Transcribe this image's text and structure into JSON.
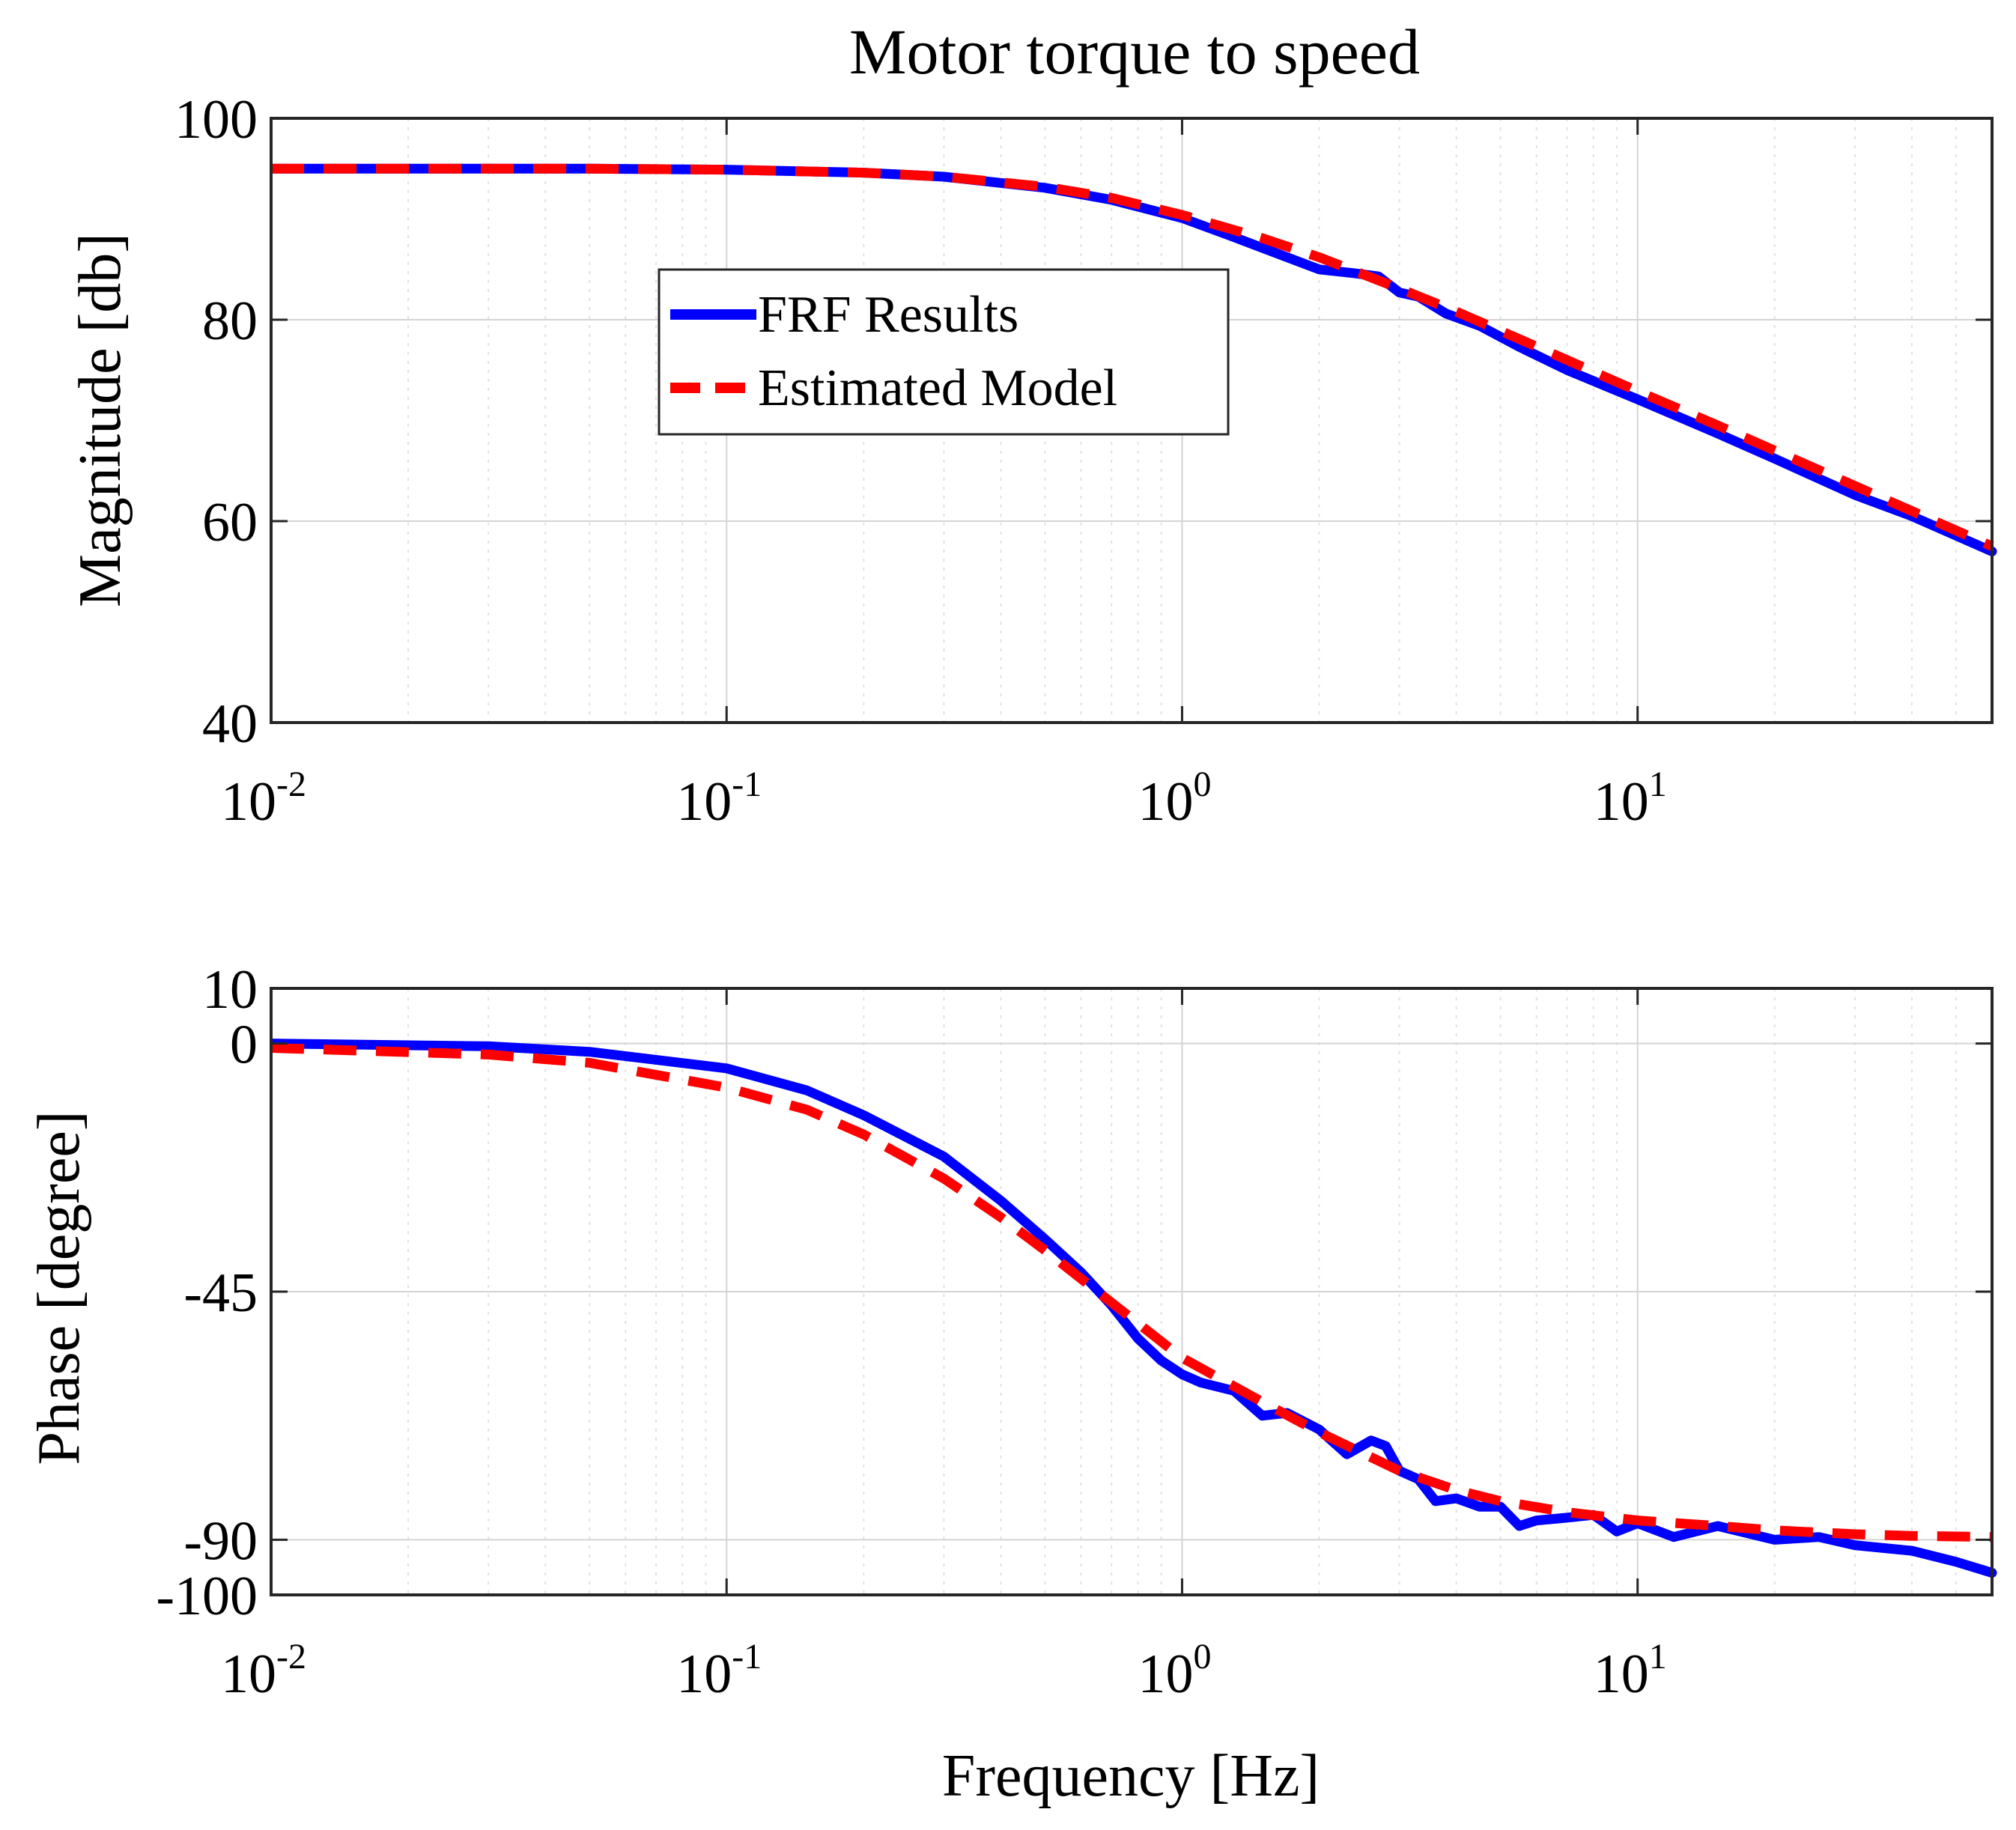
{
  "chart_data": {
    "type": "line",
    "title": "Motor torque to speed",
    "xlabel": "Frequency [Hz]",
    "xscale": "log",
    "xlim": [
      0.01,
      60
    ],
    "x_ticks": [
      {
        "value": 0.01,
        "base": "10",
        "exp": "-2"
      },
      {
        "value": 0.1,
        "base": "10",
        "exp": "-1"
      },
      {
        "value": 1,
        "base": "10",
        "exp": "0"
      },
      {
        "value": 10,
        "base": "10",
        "exp": "1"
      }
    ],
    "grid": true,
    "colors": {
      "frf": "#0000ff",
      "model": "#ff0000"
    },
    "legend": {
      "position": "upper-center",
      "entries": [
        "FRF Results",
        "Estimated Model"
      ]
    },
    "panels": [
      {
        "id": "magnitude",
        "ylabel": "Magnitude [db]",
        "ylim": [
          40,
          100
        ],
        "yticks": [
          40,
          60,
          80,
          100
        ],
        "series": [
          {
            "name": "FRF Results",
            "x": [
              0.01,
              0.05,
              0.1,
              0.2,
              0.3,
              0.5,
              0.7,
              1.0,
              1.3,
              1.7,
              2.0,
              2.4,
              2.7,
              3.0,
              3.3,
              3.8,
              4.5,
              5.5,
              7.0,
              10,
              15,
              20,
              30,
              40,
              60
            ],
            "y": [
              95.0,
              95.0,
              94.9,
              94.6,
              94.2,
              93.1,
              91.9,
              90.1,
              88.2,
              86.2,
              85.0,
              84.6,
              84.3,
              82.7,
              82.3,
              80.6,
              79.4,
              77.3,
              75.0,
              72.1,
              68.7,
              66.2,
              62.6,
              60.5,
              57.0
            ]
          },
          {
            "name": "Estimated Model",
            "x": [
              0.01,
              0.05,
              0.1,
              0.2,
              0.3,
              0.5,
              0.7,
              1.0,
              1.5,
              2.0,
              3.0,
              4.0,
              5.0,
              7.0,
              10,
              15,
              20,
              30,
              40,
              60
            ],
            "y": [
              95.0,
              95.0,
              94.9,
              94.6,
              94.2,
              93.2,
              92.1,
              90.4,
              88.1,
              86.2,
              83.1,
              80.8,
              78.9,
              76.0,
              72.9,
              69.5,
              67.0,
              63.5,
              61.0,
              57.5
            ]
          }
        ]
      },
      {
        "id": "phase",
        "ylabel": "Phase [degree]",
        "ylim": [
          -100,
          10
        ],
        "yticks": [
          -100,
          -90,
          -45,
          0,
          10
        ],
        "ytick_labels": [
          "-100",
          "-90",
          "-45",
          "0",
          "10"
        ],
        "series": [
          {
            "name": "FRF Results",
            "x": [
              0.01,
              0.03,
              0.05,
              0.1,
              0.15,
              0.2,
              0.3,
              0.4,
              0.5,
              0.6,
              0.7,
              0.8,
              0.9,
              1.0,
              1.1,
              1.3,
              1.5,
              1.7,
              2.0,
              2.3,
              2.6,
              2.8,
              3.0,
              3.3,
              3.6,
              4.0,
              4.5,
              5.0,
              5.5,
              6.0,
              7.0,
              8.0,
              9.0,
              10,
              12,
              15,
              20,
              25,
              30,
              40,
              50,
              60
            ],
            "y": [
              0,
              -0.5,
              -1.5,
              -4.5,
              -8.5,
              -13,
              -20.5,
              -28.5,
              -35.5,
              -41.5,
              -47.5,
              -53.5,
              -57.5,
              -60,
              -61.5,
              -63,
              -67.5,
              -67,
              -70,
              -74.5,
              -72,
              -73,
              -77.5,
              -79,
              -83,
              -82.5,
              -84,
              -84,
              -87.5,
              -86.5,
              -86,
              -85.5,
              -88.5,
              -87,
              -89.5,
              -87.5,
              -90,
              -89.5,
              -91,
              -92,
              -94,
              -96
            ]
          },
          {
            "name": "Estimated Model",
            "x": [
              0.01,
              0.03,
              0.05,
              0.1,
              0.15,
              0.2,
              0.3,
              0.4,
              0.5,
              0.7,
              1.0,
              1.5,
              2.0,
              3.0,
              4.0,
              5.0,
              7.0,
              10,
              15,
              20,
              30,
              40,
              60
            ],
            "y": [
              -0.8,
              -2,
              -3.5,
              -8,
              -12,
              -16.5,
              -24.5,
              -31.5,
              -37.5,
              -47,
              -57,
              -65,
              -70.5,
              -77.5,
              -81,
              -83,
              -85,
              -86.5,
              -87.5,
              -88.3,
              -89,
              -89.3,
              -89.5
            ]
          }
        ]
      }
    ]
  }
}
